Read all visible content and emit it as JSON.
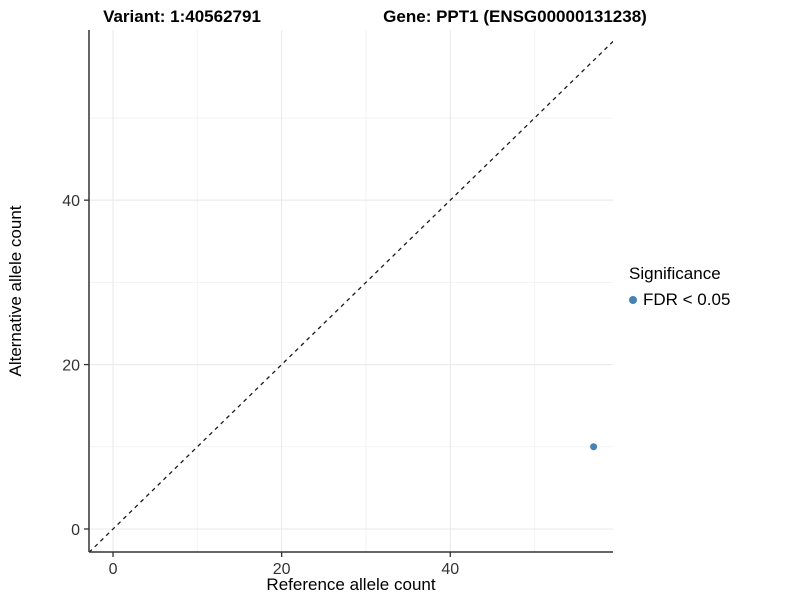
{
  "titles": {
    "variant": "Variant: 1:40562791",
    "gene": "Gene: PPT1 (ENSG00000131238)"
  },
  "chart_data": {
    "type": "scatter",
    "title_left": "Variant: 1:40562791",
    "title_right": "Gene: PPT1 (ENSG00000131238)",
    "xlabel": "Reference allele count",
    "ylabel": "Alternative allele count",
    "xlim": [
      -2.85,
      59.3
    ],
    "ylim": [
      -2.8,
      60.7
    ],
    "xticks": [
      0,
      20,
      40
    ],
    "yticks": [
      0,
      20,
      40
    ],
    "xticks_minor": [
      10,
      30,
      50
    ],
    "yticks_minor": [
      10,
      30,
      50
    ],
    "grid": "on",
    "identity_line": {
      "type": "dashed",
      "equation": "y = x",
      "color": "#1a1a1a"
    },
    "series": [
      {
        "name": "FDR < 0.05",
        "color": "#4682b4",
        "points": [
          {
            "x": 57,
            "y": 10
          }
        ]
      }
    ],
    "legend": {
      "title": "Significance",
      "position": "right",
      "entries": [
        {
          "label": "FDR < 0.05",
          "color": "#4682b4"
        }
      ]
    },
    "colors": {
      "background": "#ffffff",
      "grid_major": "#e8e8e8",
      "grid_minor": "#f3f3f3",
      "axis_line": "#333333",
      "tick_text": "#333333",
      "point": "#4682b4"
    }
  }
}
